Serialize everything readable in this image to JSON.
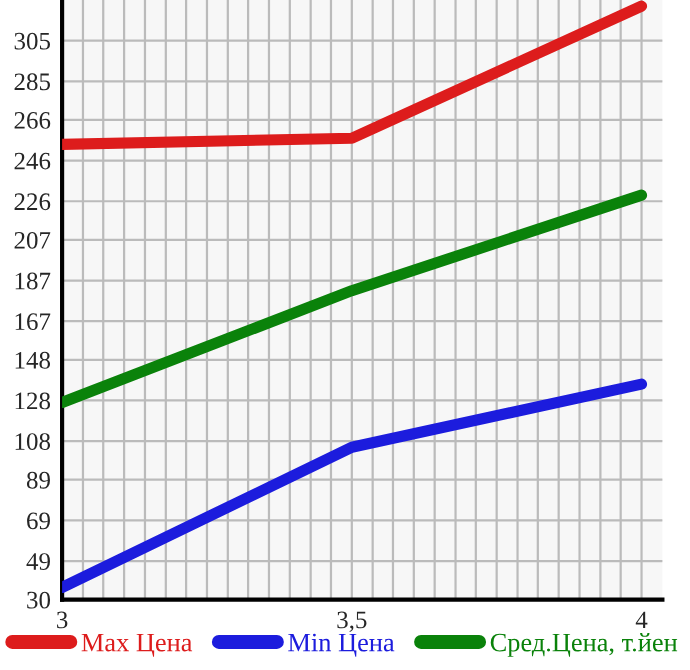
{
  "chart_data": {
    "type": "line",
    "x": [
      3,
      3.5,
      4
    ],
    "series": [
      {
        "name": "Max Цена",
        "color": "#dd1c1c",
        "values": [
          254,
          257,
          322
        ]
      },
      {
        "name": "Min Цена",
        "color": "#1c1cdd",
        "values": [
          36,
          105,
          136
        ]
      },
      {
        "name": "Сред.Цена, т.йен",
        "color": "#0a820a",
        "values": [
          127,
          182,
          229
        ]
      }
    ],
    "xlim": [
      3,
      4.036
    ],
    "xticks": [
      {
        "value": 3,
        "label": "3"
      },
      {
        "value": 3.036,
        "label": null
      },
      {
        "value": 3.071,
        "label": null
      },
      {
        "value": 3.107,
        "label": null
      },
      {
        "value": 3.143,
        "label": null
      },
      {
        "value": 3.179,
        "label": null
      },
      {
        "value": 3.214,
        "label": null
      },
      {
        "value": 3.25,
        "label": null
      },
      {
        "value": 3.286,
        "label": null
      },
      {
        "value": 3.321,
        "label": null
      },
      {
        "value": 3.357,
        "label": null
      },
      {
        "value": 3.393,
        "label": null
      },
      {
        "value": 3.429,
        "label": null
      },
      {
        "value": 3.464,
        "label": null
      },
      {
        "value": 3.5,
        "label": "3,5"
      },
      {
        "value": 3.536,
        "label": null
      },
      {
        "value": 3.571,
        "label": null
      },
      {
        "value": 3.607,
        "label": null
      },
      {
        "value": 3.643,
        "label": null
      },
      {
        "value": 3.679,
        "label": null
      },
      {
        "value": 3.714,
        "label": null
      },
      {
        "value": 3.75,
        "label": null
      },
      {
        "value": 3.786,
        "label": null
      },
      {
        "value": 3.821,
        "label": null
      },
      {
        "value": 3.857,
        "label": null
      },
      {
        "value": 3.893,
        "label": null
      },
      {
        "value": 3.929,
        "label": null
      },
      {
        "value": 3.964,
        "label": null
      },
      {
        "value": 4,
        "label": "4"
      }
    ],
    "ylim": [
      30,
      325
    ],
    "yticks": [
      30,
      49,
      69,
      89,
      108,
      128,
      148,
      167,
      187,
      207,
      226,
      246,
      266,
      285,
      305
    ],
    "grid": true,
    "legend": "bottom",
    "marker": "none",
    "line_style": "solid"
  }
}
